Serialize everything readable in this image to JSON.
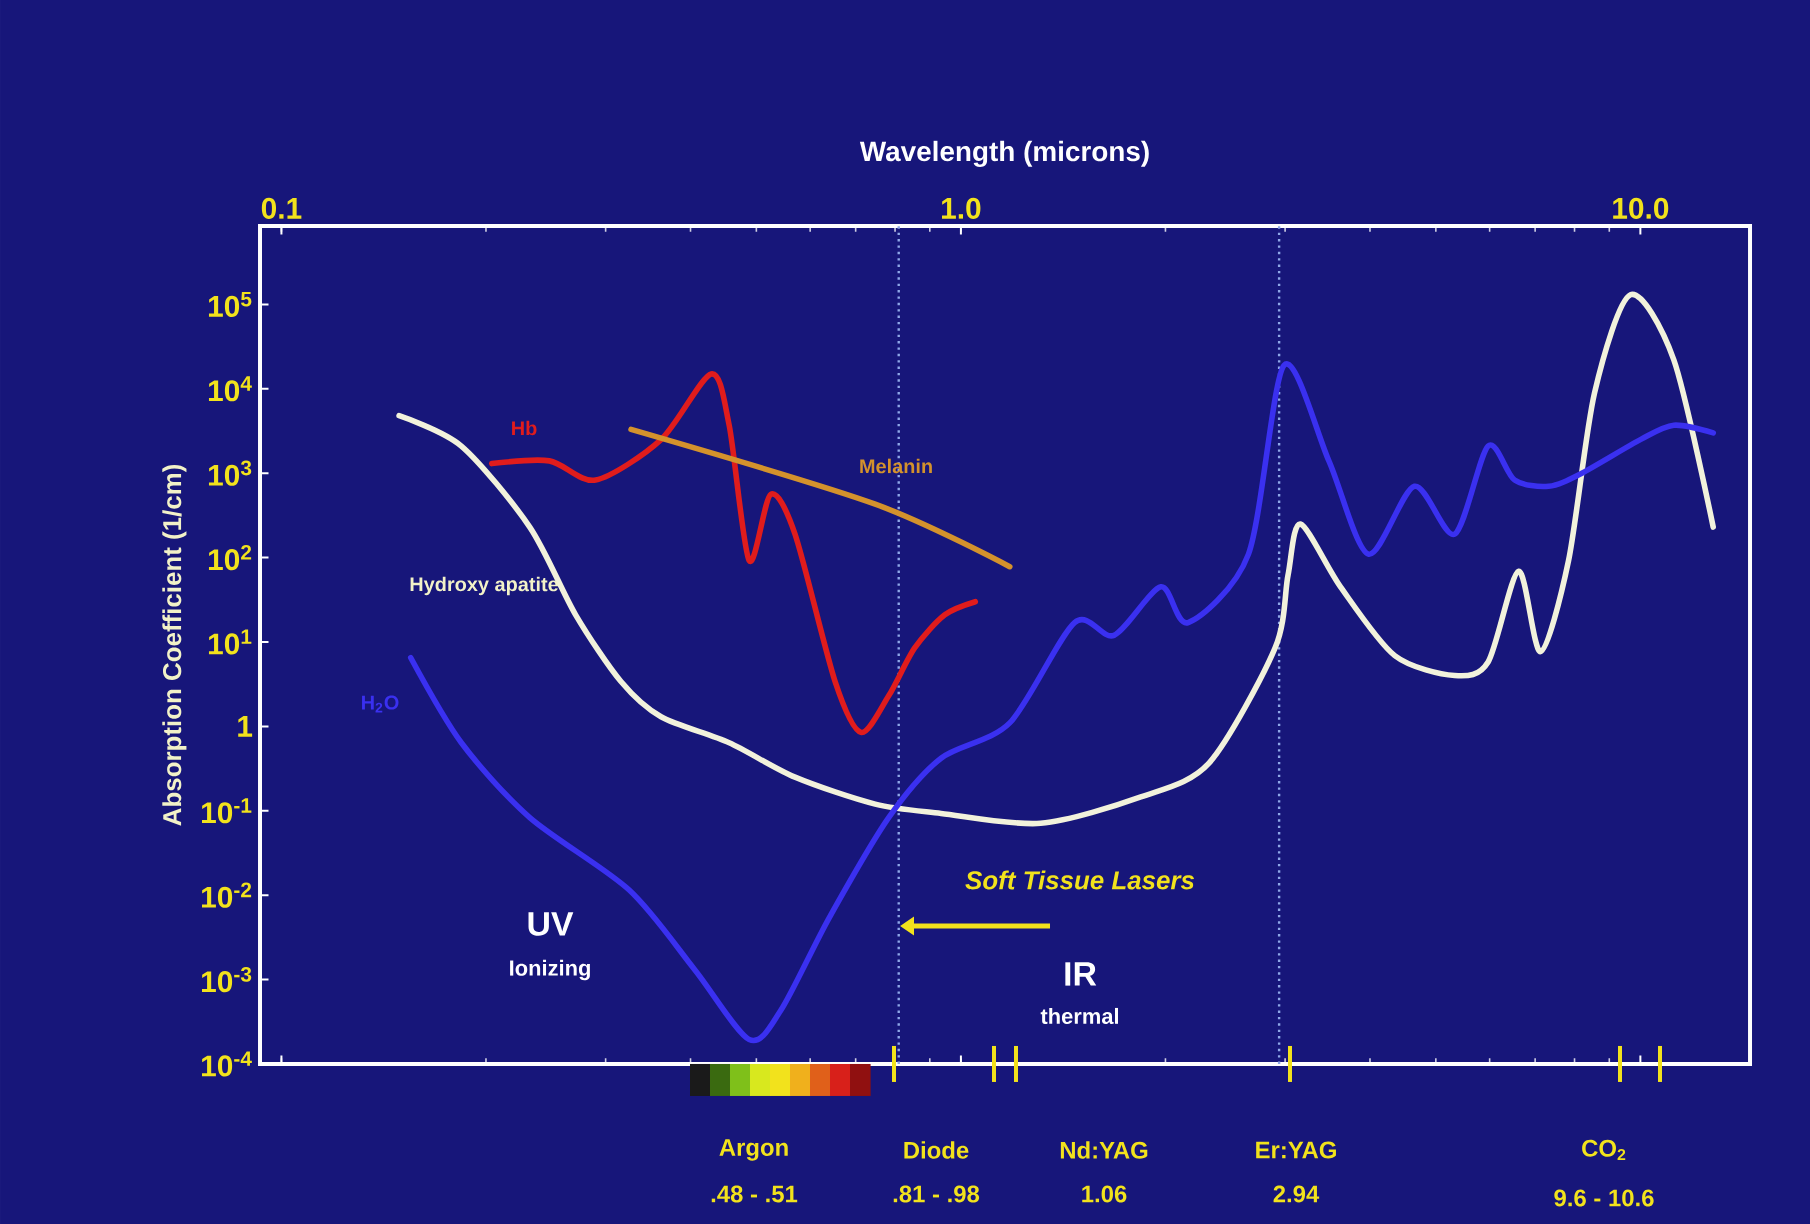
{
  "chart_data": {
    "type": "line",
    "xlabel": "Wavelength (microns)",
    "ylabel": "Absorption Coefficient (1/cm)",
    "log": "xy",
    "xlim": [
      0.093,
      14.5
    ],
    "ylim": [
      0.0001,
      850000
    ],
    "xticks": [
      {
        "value": 0.1,
        "label": "0.1"
      },
      {
        "value": 1,
        "label": "1.0"
      },
      {
        "value": 10,
        "label": "10.0"
      }
    ],
    "yticks": [
      {
        "value": 0.0001,
        "label": "10$^{-4}$"
      },
      {
        "value": 0.001,
        "label": "10$^{-3}$"
      },
      {
        "value": 0.01,
        "label": "10$^{-2}$"
      },
      {
        "value": 0.1,
        "label": "10$^{-1}$"
      },
      1,
      {
        "value": 10,
        "label": "10$^{1}$"
      },
      {
        "value": 100,
        "label": "10$^{2}$"
      },
      {
        "value": 1000,
        "label": "10$^{3}$"
      },
      {
        "value": 10000,
        "label": "10$^{4}$"
      },
      {
        "value": 100000,
        "label": "10$^{5}$"
      }
    ],
    "series": [
      {
        "name": "Hydroxy apatite",
        "color": "#f2f2dc",
        "x": [
          0.149,
          0.184,
          0.232,
          0.271,
          0.316,
          0.362,
          0.456,
          0.57,
          0.748,
          0.935,
          1.31,
          1.84,
          2.32,
          2.9,
          3.03,
          3.16,
          3.62,
          4.35,
          5.33,
          5.97,
          6.62,
          7.13,
          7.84,
          8.56,
          9.67,
          11.2,
          12.8
        ],
        "values": [
          4800,
          2100,
          230,
          21,
          3.4,
          1.3,
          0.64,
          0.25,
          0.12,
          0.093,
          0.071,
          0.146,
          0.37,
          8.5,
          62,
          250,
          45,
          6.9,
          4.0,
          5.8,
          69,
          7.7,
          92,
          8900,
          130000,
          22000,
          230
        ]
      },
      {
        "name": "H$_{2}$O",
        "color": "#3a30f0",
        "x": [
          0.155,
          0.184,
          0.232,
          0.325,
          0.406,
          0.488,
          0.543,
          0.64,
          0.783,
          0.935,
          1.18,
          1.47,
          1.68,
          1.97,
          2.16,
          2.65,
          2.99,
          3.48,
          3.98,
          4.65,
          5.33,
          5.97,
          6.53,
          7.33,
          8.16,
          10.0,
          11.2,
          12.8
        ],
        "values": [
          6.5,
          0.64,
          0.083,
          0.0115,
          0.0013,
          0.000195,
          0.00043,
          0.0054,
          0.083,
          0.42,
          1.1,
          17,
          12,
          45,
          17,
          110,
          19000,
          1400,
          110,
          700,
          190,
          2100,
          830,
          700,
          980,
          2500,
          3700,
          3000
        ]
      },
      {
        "name": "Hb",
        "color": "#e01c1c",
        "x": [
          0.204,
          0.248,
          0.29,
          0.362,
          0.429,
          0.456,
          0.488,
          0.525,
          0.57,
          0.653,
          0.713,
          0.783,
          0.855,
          0.947,
          1.05
        ],
        "values": [
          1300,
          1400,
          830,
          2500,
          15000,
          3700,
          92,
          560,
          190,
          3.4,
          0.85,
          2.3,
          8.5,
          21,
          30
        ]
      },
      {
        "name": "Melanin",
        "color": "#d4922c",
        "x": [
          0.327,
          0.748,
          1.18
        ],
        "values": [
          3300,
          430,
          78
        ]
      }
    ],
    "ref_lines": [
      {
        "axis": "x",
        "value": 0.81,
        "color": "#8fa8e8",
        "line_style": "dotted"
      },
      {
        "axis": "x",
        "value": 2.94,
        "color": "#8fa8e8",
        "line_style": "dotted"
      }
    ],
    "annotations": [
      "UV",
      "Ionizing",
      "Soft Tissue Lasers",
      "IR",
      "thermal",
      "Argon",
      ".48 - .51",
      "Diode",
      ".81 - .98",
      "Nd:YAG",
      "1.06",
      "Er:YAG",
      "2.94",
      "CO$_{2}$",
      "9.6 - 10.6"
    ]
  }
}
